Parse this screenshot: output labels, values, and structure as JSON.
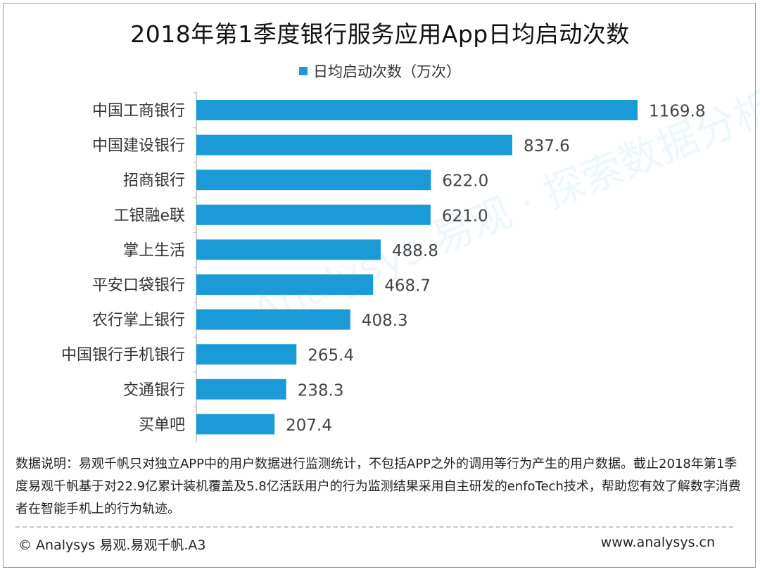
{
  "chart_data": {
    "type": "bar",
    "orientation": "horizontal",
    "title": "2018年第1季度银行服务应用App日均启动次数",
    "legend": "日均启动次数（万次）",
    "legend_position": "top",
    "categories": [
      "中国工商银行",
      "中国建设银行",
      "招商银行",
      "工银融e联",
      "掌上生活",
      "平安口袋银行",
      "农行掌上银行",
      "中国银行手机银行",
      "交通银行",
      "买单吧"
    ],
    "values": [
      1169.8,
      837.6,
      622.0,
      621.0,
      488.8,
      468.7,
      408.3,
      265.4,
      238.3,
      207.4
    ],
    "value_labels": [
      "1169.8",
      "837.6",
      "622.0",
      "621.0",
      "488.8",
      "468.7",
      "408.3",
      "265.4",
      "238.3",
      "207.4"
    ],
    "xlim": [
      0,
      1169.8
    ],
    "xlabel": "",
    "ylabel": "",
    "grid": false
  },
  "colors": {
    "bar": "#1a9ad6",
    "axis": "#bfbfbf"
  },
  "watermark": "Analysys 易观 · 探索数据分析",
  "note": "数据说明：易观千帆只对独立APP中的用户数据进行监测统计，不包括APP之外的调用等行为产生的用户数据。截止2018年第1季度易观千帆基于对22.9亿累计装机覆盖及5.8亿活跃用户的行为监测结果采用自主研发的enfoTech技术，帮助您有效了解数字消费者在智能手机上的行为轨迹。",
  "footer": {
    "left": "© Analysys 易观.易观千帆.A3",
    "right": "www.analysys.cn"
  }
}
